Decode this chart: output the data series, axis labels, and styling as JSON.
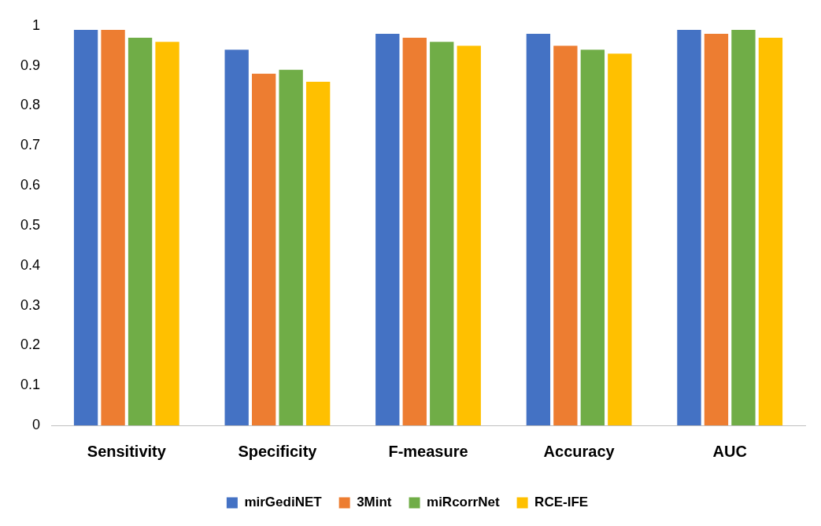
{
  "chart_data": {
    "type": "bar",
    "categories": [
      "Sensitivity",
      "Specificity",
      "F-measure",
      "Accuracy",
      "AUC"
    ],
    "series": [
      {
        "name": "mirGediNET",
        "color": "#4472c4",
        "values": [
          0.99,
          0.94,
          0.98,
          0.98,
          0.99
        ]
      },
      {
        "name": "3Mint",
        "color": "#ed7d31",
        "values": [
          0.99,
          0.88,
          0.97,
          0.95,
          0.98
        ]
      },
      {
        "name": "miRcorrNet",
        "color": "#70ad47",
        "values": [
          0.97,
          0.89,
          0.96,
          0.94,
          0.99
        ]
      },
      {
        "name": "RCE-IFE",
        "color": "#ffc000",
        "values": [
          0.96,
          0.86,
          0.95,
          0.93,
          0.97
        ]
      }
    ],
    "ylim": [
      0,
      1
    ],
    "yticks": [
      0,
      0.1,
      0.2,
      0.3,
      0.4,
      0.5,
      0.6,
      0.7,
      0.8,
      0.9,
      1
    ],
    "grid": false,
    "legend": "bottom"
  }
}
